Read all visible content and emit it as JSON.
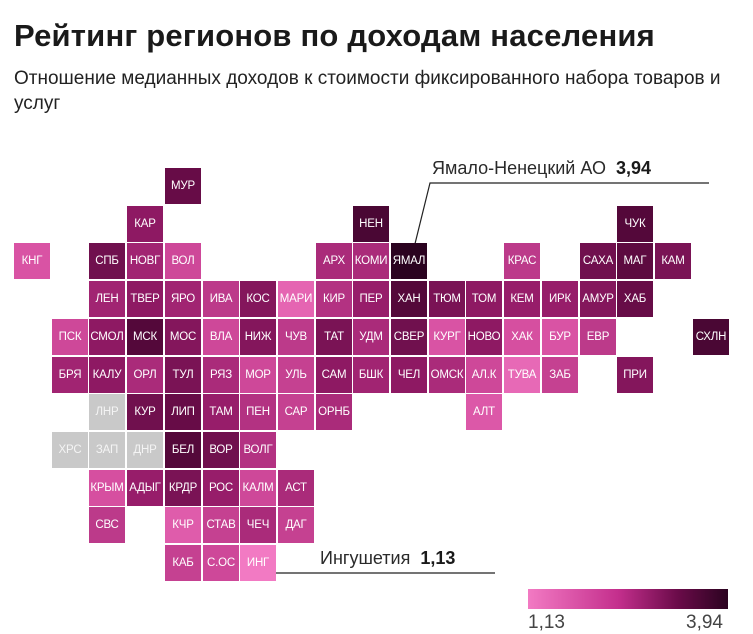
{
  "title": "Рейтинг регионов по доходам населения",
  "subtitle": "Отношение медианных доходов к стоимости фиксированного набора товаров и услуг",
  "colors": {
    "low": "#f27ac3",
    "high": "#2b0320",
    "nodata": "#c9c9c9"
  },
  "callouts": {
    "max": {
      "name": "Ямало-Ненецкий АО",
      "value": "3,94",
      "region": "ЯМАЛ"
    },
    "min": {
      "name": "Ингушетия",
      "value": "1,13",
      "region": "ИНГ"
    }
  },
  "legend": {
    "min": "1,13",
    "max": "3,94"
  },
  "chart_data": {
    "type": "heatmap",
    "title": "Рейтинг регионов по доходам населения",
    "subtitle": "Отношение медианных доходов к стоимости фиксированного набора товаров и услуг",
    "value_range": [
      1.13,
      3.94
    ],
    "regions": [
      {
        "label": "МУР",
        "row": 0,
        "col": 4,
        "value": 3.3
      },
      {
        "label": "КАР",
        "row": 1,
        "col": 3,
        "value": 2.9
      },
      {
        "label": "НЕН",
        "row": 1,
        "col": 9,
        "value": 3.6
      },
      {
        "label": "ЧУК",
        "row": 1,
        "col": 16,
        "value": 3.5
      },
      {
        "label": "КНГ",
        "row": 2,
        "col": 0,
        "value": 2.0
      },
      {
        "label": "СПБ",
        "row": 2,
        "col": 2,
        "value": 3.2
      },
      {
        "label": "НОВГ",
        "row": 2,
        "col": 3,
        "value": 2.7
      },
      {
        "label": "ВОЛ",
        "row": 2,
        "col": 4,
        "value": 2.2
      },
      {
        "label": "АРХ",
        "row": 2,
        "col": 8,
        "value": 2.6
      },
      {
        "label": "КОМИ",
        "row": 2,
        "col": 9,
        "value": 2.6
      },
      {
        "label": "ЯМАЛ",
        "row": 2,
        "col": 10,
        "value": 3.94
      },
      {
        "label": "КРАС",
        "row": 2,
        "col": 13,
        "value": 2.4
      },
      {
        "label": "САХА",
        "row": 2,
        "col": 15,
        "value": 3.2
      },
      {
        "label": "МАГ",
        "row": 2,
        "col": 16,
        "value": 3.4
      },
      {
        "label": "КАМ",
        "row": 2,
        "col": 17,
        "value": 3.1
      },
      {
        "label": "ЛЕН",
        "row": 3,
        "col": 2,
        "value": 2.7
      },
      {
        "label": "ТВЕР",
        "row": 3,
        "col": 3,
        "value": 2.9
      },
      {
        "label": "ЯРО",
        "row": 3,
        "col": 4,
        "value": 2.7
      },
      {
        "label": "ИВА",
        "row": 3,
        "col": 5,
        "value": 2.4
      },
      {
        "label": "КОС",
        "row": 3,
        "col": 6,
        "value": 3.0
      },
      {
        "label": "МАРИ",
        "row": 3,
        "col": 7,
        "value": 1.6
      },
      {
        "label": "КИР",
        "row": 3,
        "col": 8,
        "value": 2.5
      },
      {
        "label": "ПЕР",
        "row": 3,
        "col": 9,
        "value": 2.8
      },
      {
        "label": "ХАН",
        "row": 3,
        "col": 10,
        "value": 3.5
      },
      {
        "label": "ТЮМ",
        "row": 3,
        "col": 11,
        "value": 3.1
      },
      {
        "label": "ТОМ",
        "row": 3,
        "col": 12,
        "value": 2.9
      },
      {
        "label": "КЕМ",
        "row": 3,
        "col": 13,
        "value": 2.8
      },
      {
        "label": "ИРК",
        "row": 3,
        "col": 14,
        "value": 2.8
      },
      {
        "label": "АМУР",
        "row": 3,
        "col": 15,
        "value": 3.0
      },
      {
        "label": "ХАБ",
        "row": 3,
        "col": 16,
        "value": 3.3
      },
      {
        "label": "ПСК",
        "row": 4,
        "col": 1,
        "value": 2.2
      },
      {
        "label": "СМОЛ",
        "row": 4,
        "col": 2,
        "value": 2.9
      },
      {
        "label": "МСК",
        "row": 4,
        "col": 3,
        "value": 3.5
      },
      {
        "label": "МОС",
        "row": 4,
        "col": 4,
        "value": 3.0
      },
      {
        "label": "ВЛА",
        "row": 4,
        "col": 5,
        "value": 2.2
      },
      {
        "label": "НИЖ",
        "row": 4,
        "col": 6,
        "value": 3.0
      },
      {
        "label": "ЧУВ",
        "row": 4,
        "col": 7,
        "value": 2.4
      },
      {
        "label": "ТАТ",
        "row": 4,
        "col": 8,
        "value": 3.1
      },
      {
        "label": "УДМ",
        "row": 4,
        "col": 9,
        "value": 2.6
      },
      {
        "label": "СВЕР",
        "row": 4,
        "col": 10,
        "value": 3.2
      },
      {
        "label": "КУРГ",
        "row": 4,
        "col": 11,
        "value": 2.0
      },
      {
        "label": "НОВО",
        "row": 4,
        "col": 12,
        "value": 2.9
      },
      {
        "label": "ХАК",
        "row": 4,
        "col": 13,
        "value": 2.1
      },
      {
        "label": "БУР",
        "row": 4,
        "col": 14,
        "value": 2.0
      },
      {
        "label": "ЕВР",
        "row": 4,
        "col": 15,
        "value": 2.4
      },
      {
        "label": "СХЛН",
        "row": 4,
        "col": 18,
        "value": 3.6
      },
      {
        "label": "БРЯ",
        "row": 5,
        "col": 1,
        "value": 2.7
      },
      {
        "label": "КАЛУ",
        "row": 5,
        "col": 2,
        "value": 2.9
      },
      {
        "label": "ОРЛ",
        "row": 5,
        "col": 3,
        "value": 2.6
      },
      {
        "label": "ТУЛ",
        "row": 5,
        "col": 4,
        "value": 3.1
      },
      {
        "label": "РЯЗ",
        "row": 5,
        "col": 5,
        "value": 2.6
      },
      {
        "label": "МОР",
        "row": 5,
        "col": 6,
        "value": 2.2
      },
      {
        "label": "УЛЬ",
        "row": 5,
        "col": 7,
        "value": 2.3
      },
      {
        "label": "САМ",
        "row": 5,
        "col": 8,
        "value": 2.9
      },
      {
        "label": "БШК",
        "row": 5,
        "col": 9,
        "value": 2.7
      },
      {
        "label": "ЧЕЛ",
        "row": 5,
        "col": 10,
        "value": 2.9
      },
      {
        "label": "ОМСК",
        "row": 5,
        "col": 11,
        "value": 2.6
      },
      {
        "label": "АЛ.К",
        "row": 5,
        "col": 12,
        "value": 2.2
      },
      {
        "label": "ТУВА",
        "row": 5,
        "col": 13,
        "value": 1.5
      },
      {
        "label": "ЗАБ",
        "row": 5,
        "col": 14,
        "value": 2.3
      },
      {
        "label": "ПРИ",
        "row": 5,
        "col": 16,
        "value": 3.0
      },
      {
        "label": "ЛНР",
        "row": 6,
        "col": 2,
        "value": null
      },
      {
        "label": "КУР",
        "row": 6,
        "col": 3,
        "value": 3.2
      },
      {
        "label": "ЛИП",
        "row": 6,
        "col": 4,
        "value": 3.3
      },
      {
        "label": "ТАМ",
        "row": 6,
        "col": 5,
        "value": 2.8
      },
      {
        "label": "ПЕН",
        "row": 6,
        "col": 6,
        "value": 2.5
      },
      {
        "label": "САР",
        "row": 6,
        "col": 7,
        "value": 2.3
      },
      {
        "label": "ОРНБ",
        "row": 6,
        "col": 8,
        "value": 2.6
      },
      {
        "label": "АЛТ",
        "row": 6,
        "col": 12,
        "value": 1.9
      },
      {
        "label": "ХРС",
        "row": 7,
        "col": 1,
        "value": null
      },
      {
        "label": "ЗАП",
        "row": 7,
        "col": 2,
        "value": null
      },
      {
        "label": "ДНР",
        "row": 7,
        "col": 3,
        "value": null
      },
      {
        "label": "БЕЛ",
        "row": 7,
        "col": 4,
        "value": 3.5
      },
      {
        "label": "ВОР",
        "row": 7,
        "col": 5,
        "value": 3.2
      },
      {
        "label": "ВОЛГ",
        "row": 7,
        "col": 6,
        "value": 2.5
      },
      {
        "label": "КРЫМ",
        "row": 8,
        "col": 2,
        "value": 2.1
      },
      {
        "label": "АДЫГ",
        "row": 8,
        "col": 3,
        "value": 2.8
      },
      {
        "label": "КРДР",
        "row": 8,
        "col": 4,
        "value": 3.1
      },
      {
        "label": "РОС",
        "row": 8,
        "col": 5,
        "value": 2.8
      },
      {
        "label": "КАЛМ",
        "row": 8,
        "col": 6,
        "value": 2.2
      },
      {
        "label": "АСТ",
        "row": 8,
        "col": 7,
        "value": 2.6
      },
      {
        "label": "СВС",
        "row": 9,
        "col": 2,
        "value": 2.4
      },
      {
        "label": "КЧР",
        "row": 9,
        "col": 4,
        "value": 1.8
      },
      {
        "label": "СТАВ",
        "row": 9,
        "col": 5,
        "value": 2.3
      },
      {
        "label": "ЧЕЧ",
        "row": 9,
        "col": 6,
        "value": 2.6
      },
      {
        "label": "ДАГ",
        "row": 9,
        "col": 7,
        "value": 2.3
      },
      {
        "label": "КАБ",
        "row": 10,
        "col": 4,
        "value": 2.3
      },
      {
        "label": "С.ОС",
        "row": 10,
        "col": 5,
        "value": 2.2
      },
      {
        "label": "ИНГ",
        "row": 10,
        "col": 6,
        "value": 1.13
      }
    ]
  }
}
